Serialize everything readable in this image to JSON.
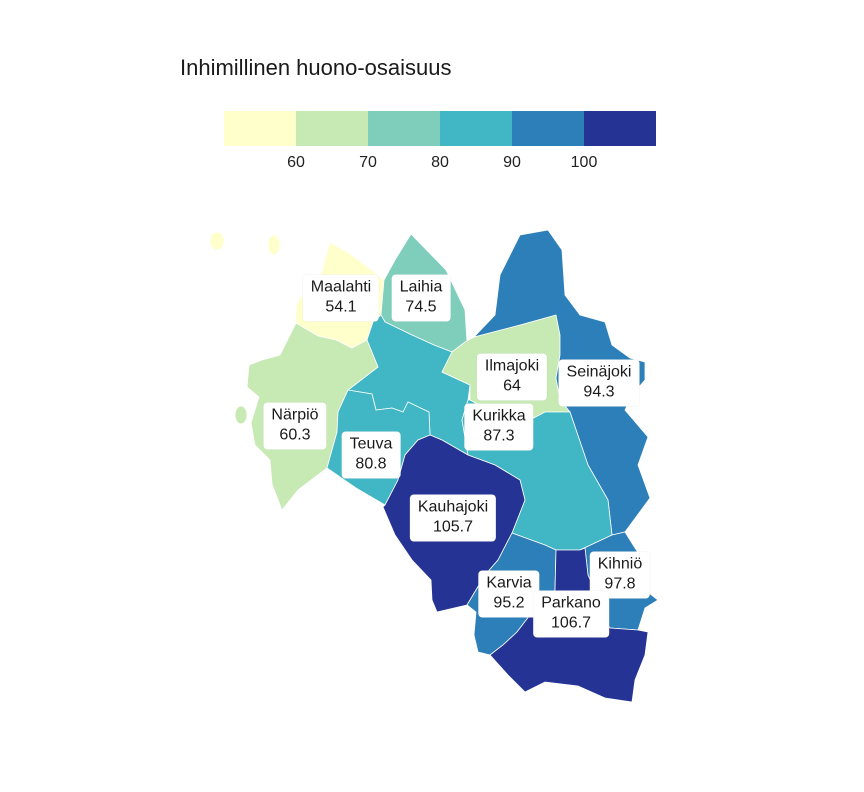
{
  "title": "Inhimillinen huono-osaisuus",
  "legend": {
    "colors": [
      "#ffffcc",
      "#c7e9b4",
      "#7fcdbb",
      "#41b6c4",
      "#2c7fb8",
      "#253494"
    ],
    "ticks": [
      "60",
      "70",
      "80",
      "90",
      "100"
    ]
  },
  "municipalities": {
    "maalahti": {
      "name": "Maalahti",
      "value": "54.1",
      "color": "#ffffcc"
    },
    "laihia": {
      "name": "Laihia",
      "value": "74.5",
      "color": "#7fcdbb"
    },
    "ilmajoki": {
      "name": "Ilmajoki",
      "value": "64",
      "color": "#c7e9b4"
    },
    "seinajoki": {
      "name": "Seinäjoki",
      "value": "94.3",
      "color": "#2c7fb8"
    },
    "narpio": {
      "name": "Närpiö",
      "value": "60.3",
      "color": "#c7e9b4"
    },
    "teuva": {
      "name": "Teuva",
      "value": "80.8",
      "color": "#41b6c4"
    },
    "kurikka": {
      "name": "Kurikka",
      "value": "87.3",
      "color": "#41b6c4"
    },
    "kauhajoki": {
      "name": "Kauhajoki",
      "value": "105.7",
      "color": "#253494"
    },
    "kihnio": {
      "name": "Kihniö",
      "value": "97.8",
      "color": "#2c7fb8"
    },
    "karvia": {
      "name": "Karvia",
      "value": "95.2",
      "color": "#2c7fb8"
    },
    "parkano": {
      "name": "Parkano",
      "value": "106.7",
      "color": "#253494"
    },
    "isokyro": {
      "color": "#41b6c4"
    }
  }
}
